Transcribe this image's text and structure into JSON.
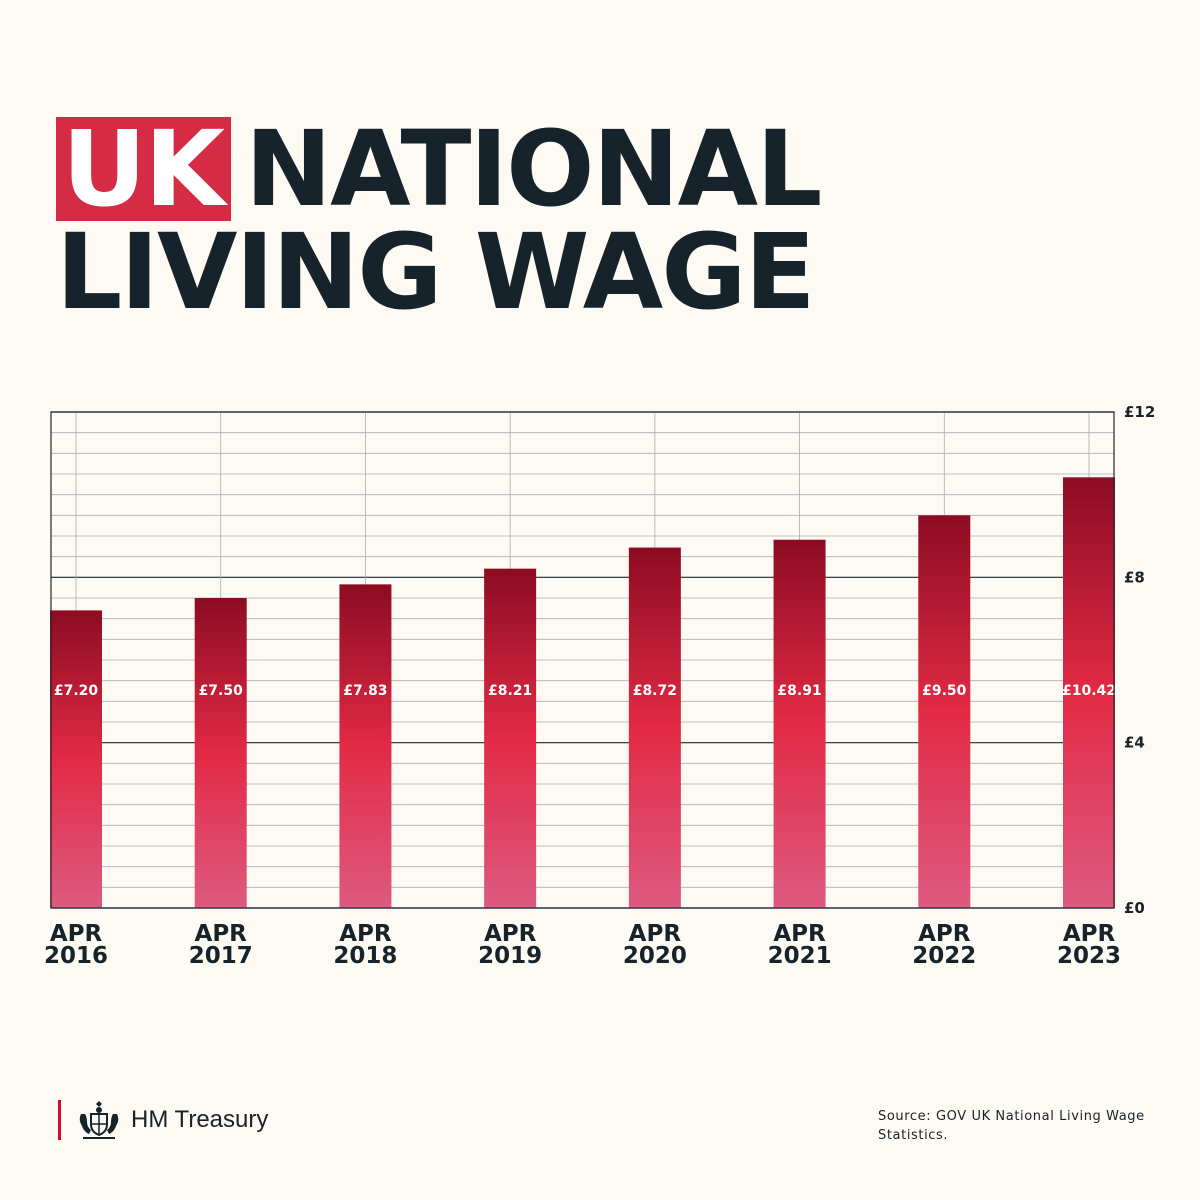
{
  "title": {
    "highlight": "UK",
    "line1_rest": "NATIONAL",
    "line2": "LIVING WAGE"
  },
  "chart_data": {
    "type": "bar",
    "title": "UK NATIONAL LIVING WAGE",
    "categories": [
      [
        "APR",
        "2016"
      ],
      [
        "APR",
        "2017"
      ],
      [
        "APR",
        "2018"
      ],
      [
        "APR",
        "2019"
      ],
      [
        "APR",
        "2020"
      ],
      [
        "APR",
        "2021"
      ],
      [
        "APR",
        "2022"
      ],
      [
        "APR",
        "2023"
      ]
    ],
    "values": [
      7.2,
      7.5,
      7.83,
      8.21,
      8.72,
      8.91,
      9.5,
      10.42
    ],
    "value_labels": [
      "£7.20",
      "£7.50",
      "£7.83",
      "£8.21",
      "£8.72",
      "£8.91",
      "£9.50",
      "£10.42"
    ],
    "ylim": [
      0,
      12
    ],
    "y_ticks": [
      0,
      4,
      8,
      12
    ],
    "y_tick_labels": [
      "£0",
      "£4",
      "£8",
      "£12"
    ],
    "y_axis_side": "right",
    "grid": true,
    "legend": "none",
    "bar_gradient": [
      "#8c0c22",
      "#e22a45",
      "#de5a80"
    ]
  },
  "footer": {
    "org": "HM Treasury",
    "crest_icon": "royal-coat-of-arms-icon",
    "accent": "#c8102e",
    "source": "Source: GOV UK National Living Wage Statistics."
  },
  "colors": {
    "background": "#fcfaf2",
    "text": "#17232b",
    "highlight": "#d62b45"
  }
}
